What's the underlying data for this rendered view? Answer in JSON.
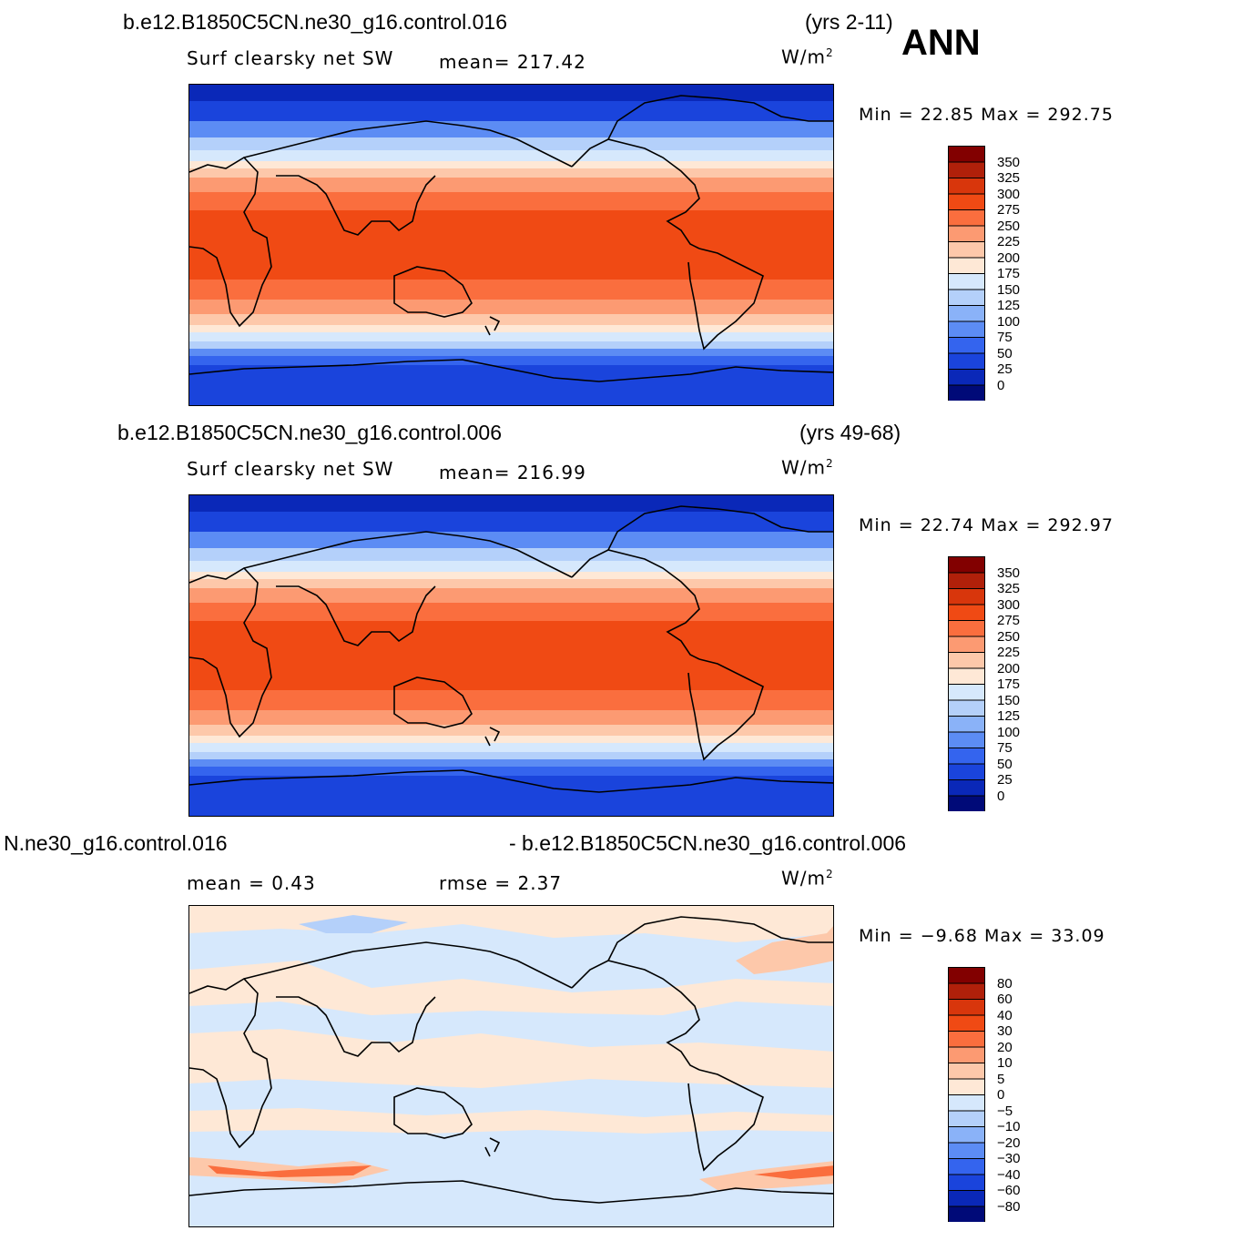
{
  "season": "ANN",
  "panels": [
    {
      "case": "b.e12.B1850C5CN.ne30_g16.control.016",
      "years": "(yrs 2-11)",
      "variable": "Surf clearsky net SW",
      "stat1": "mean= 217.42",
      "stat2": "",
      "units": "W/m",
      "units_exp": "2",
      "minmax": "Min =   22.85 Max =  292.75"
    },
    {
      "case": "b.e12.B1850C5CN.ne30_g16.control.006",
      "years": "(yrs 49-68)",
      "variable": "Surf clearsky net SW",
      "stat1": "mean= 216.99",
      "stat2": "",
      "units": "W/m",
      "units_exp": "2",
      "minmax": "Min =   22.74 Max =  292.97"
    },
    {
      "case": "N.ne30_g16.control.016",
      "years": "- b.e12.B1850C5CN.ne30_g16.control.006",
      "variable": "",
      "stat1": "mean =    0.43",
      "stat2": "rmse =    2.37",
      "units": "W/m",
      "units_exp": "2",
      "minmax": "Min =  −9.68 Max =   33.09"
    }
  ],
  "colorbar_abs": {
    "levels": [
      "350",
      "325",
      "300",
      "275",
      "250",
      "225",
      "200",
      "175",
      "150",
      "125",
      "100",
      "75",
      "50",
      "25",
      "0"
    ],
    "colors": [
      "#820000",
      "#b0200a",
      "#d8360c",
      "#f04a14",
      "#fa6e3e",
      "#fc9a72",
      "#fdc8aa",
      "#fee8d6",
      "#d6e8fc",
      "#b4d0fa",
      "#8ab2f8",
      "#5c8cf4",
      "#3464ee",
      "#1a44dc",
      "#0a28b8",
      "#000a78"
    ]
  },
  "colorbar_diff": {
    "levels": [
      "80",
      "60",
      "40",
      "30",
      "20",
      "10",
      "5",
      "0",
      "−5",
      "−10",
      "−20",
      "−30",
      "−40",
      "−60",
      "−80"
    ],
    "colors": [
      "#820000",
      "#b0200a",
      "#d8360c",
      "#f04a14",
      "#fa6e3e",
      "#fc9a72",
      "#fdc8aa",
      "#fee8d6",
      "#d6e8fc",
      "#b4d0fa",
      "#8ab2f8",
      "#5c8cf4",
      "#3464ee",
      "#1a44dc",
      "#0a28b8",
      "#000a78"
    ]
  }
}
